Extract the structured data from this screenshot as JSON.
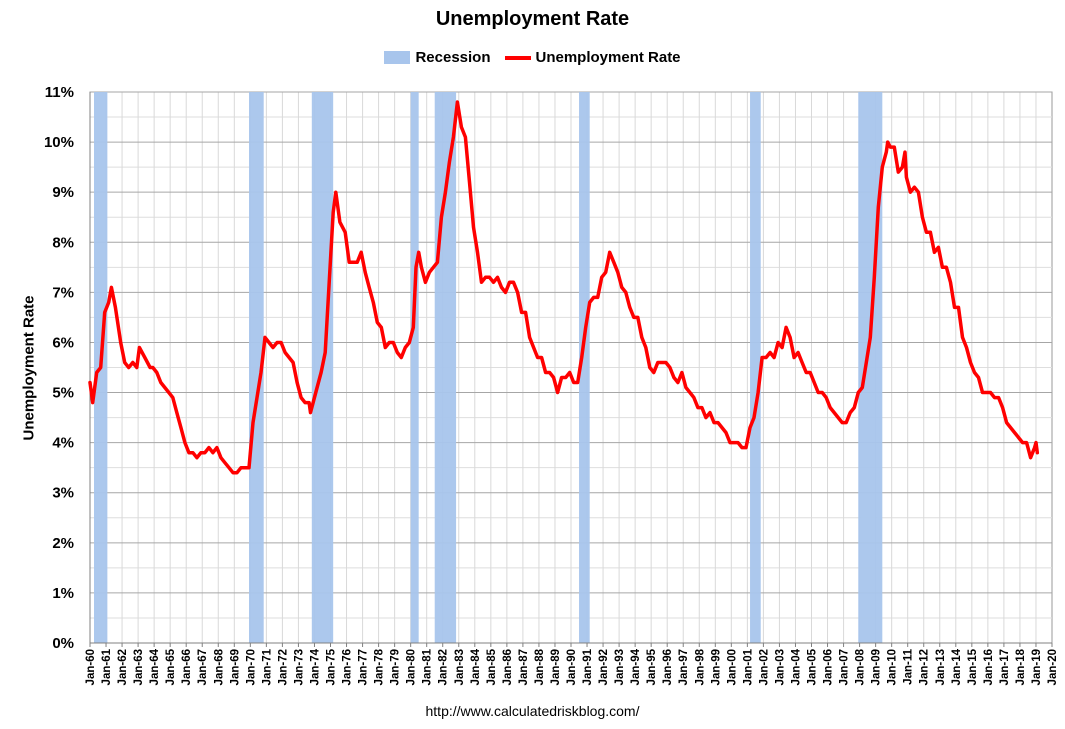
{
  "chart_data": {
    "type": "line",
    "title": "Unemployment Rate",
    "ylabel": "Unemployment Rate",
    "xlabel": "",
    "source": "http://www.calculatedriskblog.com/",
    "ylim": [
      0,
      11
    ],
    "y_ticks": [
      "0%",
      "1%",
      "2%",
      "3%",
      "4%",
      "5%",
      "6%",
      "7%",
      "8%",
      "9%",
      "10%",
      "11%"
    ],
    "x_range": [
      1960,
      2020
    ],
    "x_ticks": [
      "Jan-60",
      "Jan-61",
      "Jan-62",
      "Jan-63",
      "Jan-64",
      "Jan-65",
      "Jan-66",
      "Jan-67",
      "Jan-68",
      "Jan-69",
      "Jan-70",
      "Jan-71",
      "Jan-72",
      "Jan-73",
      "Jan-74",
      "Jan-75",
      "Jan-76",
      "Jan-77",
      "Jan-78",
      "Jan-79",
      "Jan-80",
      "Jan-81",
      "Jan-82",
      "Jan-83",
      "Jan-84",
      "Jan-85",
      "Jan-86",
      "Jan-87",
      "Jan-88",
      "Jan-89",
      "Jan-90",
      "Jan-91",
      "Jan-92",
      "Jan-93",
      "Jan-94",
      "Jan-95",
      "Jan-96",
      "Jan-97",
      "Jan-98",
      "Jan-99",
      "Jan-00",
      "Jan-01",
      "Jan-02",
      "Jan-03",
      "Jan-04",
      "Jan-05",
      "Jan-06",
      "Jan-07",
      "Jan-08",
      "Jan-09",
      "Jan-10",
      "Jan-11",
      "Jan-12",
      "Jan-13",
      "Jan-14",
      "Jan-15",
      "Jan-16",
      "Jan-17",
      "Jan-18",
      "Jan-19",
      "Jan-20"
    ],
    "grid": true,
    "legend_position": "top",
    "legend": [
      {
        "label": "Recession",
        "kind": "band",
        "color": "#a8c5ec"
      },
      {
        "label": "Unemployment Rate",
        "kind": "line",
        "color": "#ff0000"
      }
    ],
    "recessions": [
      [
        "1960-04",
        "1961-02"
      ],
      [
        "1969-12",
        "1970-11"
      ],
      [
        "1973-11",
        "1975-03"
      ],
      [
        "1980-01",
        "1980-07"
      ],
      [
        "1981-07",
        "1982-11"
      ],
      [
        "1990-07",
        "1991-03"
      ],
      [
        "2001-03",
        "2001-11"
      ],
      [
        "2007-12",
        "2009-06"
      ]
    ],
    "series": [
      {
        "name": "Unemployment Rate",
        "color": "#ff0000",
        "points": [
          [
            "1960-01",
            5.2
          ],
          [
            "1960-03",
            4.8
          ],
          [
            "1960-06",
            5.4
          ],
          [
            "1960-09",
            5.5
          ],
          [
            "1960-12",
            6.6
          ],
          [
            "1961-03",
            6.8
          ],
          [
            "1961-05",
            7.1
          ],
          [
            "1961-08",
            6.7
          ],
          [
            "1961-12",
            6.0
          ],
          [
            "1962-03",
            5.6
          ],
          [
            "1962-06",
            5.5
          ],
          [
            "1962-09",
            5.6
          ],
          [
            "1962-12",
            5.5
          ],
          [
            "1963-02",
            5.9
          ],
          [
            "1963-06",
            5.7
          ],
          [
            "1963-10",
            5.5
          ],
          [
            "1963-12",
            5.5
          ],
          [
            "1964-03",
            5.4
          ],
          [
            "1964-06",
            5.2
          ],
          [
            "1964-09",
            5.1
          ],
          [
            "1964-12",
            5.0
          ],
          [
            "1965-03",
            4.9
          ],
          [
            "1965-06",
            4.6
          ],
          [
            "1965-09",
            4.3
          ],
          [
            "1965-12",
            4.0
          ],
          [
            "1966-03",
            3.8
          ],
          [
            "1966-06",
            3.8
          ],
          [
            "1966-09",
            3.7
          ],
          [
            "1966-12",
            3.8
          ],
          [
            "1967-03",
            3.8
          ],
          [
            "1967-06",
            3.9
          ],
          [
            "1967-09",
            3.8
          ],
          [
            "1967-12",
            3.9
          ],
          [
            "1968-03",
            3.7
          ],
          [
            "1968-06",
            3.6
          ],
          [
            "1968-09",
            3.5
          ],
          [
            "1968-12",
            3.4
          ],
          [
            "1969-03",
            3.4
          ],
          [
            "1969-06",
            3.5
          ],
          [
            "1969-09",
            3.5
          ],
          [
            "1969-12",
            3.5
          ],
          [
            "1970-03",
            4.4
          ],
          [
            "1970-06",
            4.9
          ],
          [
            "1970-09",
            5.4
          ],
          [
            "1970-12",
            6.1
          ],
          [
            "1971-03",
            6.0
          ],
          [
            "1971-06",
            5.9
          ],
          [
            "1971-09",
            6.0
          ],
          [
            "1971-12",
            6.0
          ],
          [
            "1972-03",
            5.8
          ],
          [
            "1972-06",
            5.7
          ],
          [
            "1972-09",
            5.6
          ],
          [
            "1972-12",
            5.2
          ],
          [
            "1973-03",
            4.9
          ],
          [
            "1973-06",
            4.8
          ],
          [
            "1973-09",
            4.8
          ],
          [
            "1973-10",
            4.6
          ],
          [
            "1974-03",
            5.1
          ],
          [
            "1974-06",
            5.4
          ],
          [
            "1974-09",
            5.8
          ],
          [
            "1974-12",
            7.2
          ],
          [
            "1975-03",
            8.6
          ],
          [
            "1975-05",
            9.0
          ],
          [
            "1975-08",
            8.4
          ],
          [
            "1975-12",
            8.2
          ],
          [
            "1976-03",
            7.6
          ],
          [
            "1976-06",
            7.6
          ],
          [
            "1976-09",
            7.6
          ],
          [
            "1976-12",
            7.8
          ],
          [
            "1977-03",
            7.4
          ],
          [
            "1977-06",
            7.1
          ],
          [
            "1977-09",
            6.8
          ],
          [
            "1977-12",
            6.4
          ],
          [
            "1978-03",
            6.3
          ],
          [
            "1978-06",
            5.9
          ],
          [
            "1978-09",
            6.0
          ],
          [
            "1978-12",
            6.0
          ],
          [
            "1979-03",
            5.8
          ],
          [
            "1979-06",
            5.7
          ],
          [
            "1979-09",
            5.9
          ],
          [
            "1979-12",
            6.0
          ],
          [
            "1980-03",
            6.3
          ],
          [
            "1980-05",
            7.5
          ],
          [
            "1980-07",
            7.8
          ],
          [
            "1980-09",
            7.5
          ],
          [
            "1980-12",
            7.2
          ],
          [
            "1981-03",
            7.4
          ],
          [
            "1981-06",
            7.5
          ],
          [
            "1981-09",
            7.6
          ],
          [
            "1981-12",
            8.5
          ],
          [
            "1982-03",
            9.0
          ],
          [
            "1982-06",
            9.6
          ],
          [
            "1982-09",
            10.1
          ],
          [
            "1982-12",
            10.8
          ],
          [
            "1983-03",
            10.3
          ],
          [
            "1983-06",
            10.1
          ],
          [
            "1983-09",
            9.2
          ],
          [
            "1983-12",
            8.3
          ],
          [
            "1984-03",
            7.8
          ],
          [
            "1984-06",
            7.2
          ],
          [
            "1984-09",
            7.3
          ],
          [
            "1984-12",
            7.3
          ],
          [
            "1985-03",
            7.2
          ],
          [
            "1985-06",
            7.3
          ],
          [
            "1985-09",
            7.1
          ],
          [
            "1985-12",
            7.0
          ],
          [
            "1986-03",
            7.2
          ],
          [
            "1986-06",
            7.2
          ],
          [
            "1986-09",
            7.0
          ],
          [
            "1986-12",
            6.6
          ],
          [
            "1987-03",
            6.6
          ],
          [
            "1987-06",
            6.1
          ],
          [
            "1987-09",
            5.9
          ],
          [
            "1987-12",
            5.7
          ],
          [
            "1988-03",
            5.7
          ],
          [
            "1988-06",
            5.4
          ],
          [
            "1988-09",
            5.4
          ],
          [
            "1988-12",
            5.3
          ],
          [
            "1989-03",
            5.0
          ],
          [
            "1989-06",
            5.3
          ],
          [
            "1989-09",
            5.3
          ],
          [
            "1989-12",
            5.4
          ],
          [
            "1990-03",
            5.2
          ],
          [
            "1990-06",
            5.2
          ],
          [
            "1990-09",
            5.7
          ],
          [
            "1990-12",
            6.3
          ],
          [
            "1991-03",
            6.8
          ],
          [
            "1991-06",
            6.9
          ],
          [
            "1991-09",
            6.9
          ],
          [
            "1991-12",
            7.3
          ],
          [
            "1992-03",
            7.4
          ],
          [
            "1992-06",
            7.8
          ],
          [
            "1992-09",
            7.6
          ],
          [
            "1992-12",
            7.4
          ],
          [
            "1993-03",
            7.1
          ],
          [
            "1993-06",
            7.0
          ],
          [
            "1993-09",
            6.7
          ],
          [
            "1993-12",
            6.5
          ],
          [
            "1994-03",
            6.5
          ],
          [
            "1994-06",
            6.1
          ],
          [
            "1994-09",
            5.9
          ],
          [
            "1994-12",
            5.5
          ],
          [
            "1995-03",
            5.4
          ],
          [
            "1995-06",
            5.6
          ],
          [
            "1995-09",
            5.6
          ],
          [
            "1995-12",
            5.6
          ],
          [
            "1996-03",
            5.5
          ],
          [
            "1996-06",
            5.3
          ],
          [
            "1996-09",
            5.2
          ],
          [
            "1996-12",
            5.4
          ],
          [
            "1997-03",
            5.1
          ],
          [
            "1997-06",
            5.0
          ],
          [
            "1997-09",
            4.9
          ],
          [
            "1997-12",
            4.7
          ],
          [
            "1998-03",
            4.7
          ],
          [
            "1998-06",
            4.5
          ],
          [
            "1998-09",
            4.6
          ],
          [
            "1998-12",
            4.4
          ],
          [
            "1999-03",
            4.4
          ],
          [
            "1999-06",
            4.3
          ],
          [
            "1999-09",
            4.2
          ],
          [
            "1999-12",
            4.0
          ],
          [
            "2000-03",
            4.0
          ],
          [
            "2000-06",
            4.0
          ],
          [
            "2000-09",
            3.9
          ],
          [
            "2000-12",
            3.9
          ],
          [
            "2001-03",
            4.3
          ],
          [
            "2001-06",
            4.5
          ],
          [
            "2001-09",
            5.0
          ],
          [
            "2001-12",
            5.7
          ],
          [
            "2002-03",
            5.7
          ],
          [
            "2002-06",
            5.8
          ],
          [
            "2002-09",
            5.7
          ],
          [
            "2002-12",
            6.0
          ],
          [
            "2003-03",
            5.9
          ],
          [
            "2003-06",
            6.3
          ],
          [
            "2003-09",
            6.1
          ],
          [
            "2003-12",
            5.7
          ],
          [
            "2004-03",
            5.8
          ],
          [
            "2004-06",
            5.6
          ],
          [
            "2004-09",
            5.4
          ],
          [
            "2004-12",
            5.4
          ],
          [
            "2005-03",
            5.2
          ],
          [
            "2005-06",
            5.0
          ],
          [
            "2005-09",
            5.0
          ],
          [
            "2005-12",
            4.9
          ],
          [
            "2006-03",
            4.7
          ],
          [
            "2006-06",
            4.6
          ],
          [
            "2006-09",
            4.5
          ],
          [
            "2006-12",
            4.4
          ],
          [
            "2007-03",
            4.4
          ],
          [
            "2007-06",
            4.6
          ],
          [
            "2007-09",
            4.7
          ],
          [
            "2007-12",
            5.0
          ],
          [
            "2008-03",
            5.1
          ],
          [
            "2008-06",
            5.6
          ],
          [
            "2008-09",
            6.1
          ],
          [
            "2008-12",
            7.3
          ],
          [
            "2009-03",
            8.7
          ],
          [
            "2009-06",
            9.5
          ],
          [
            "2009-09",
            9.8
          ],
          [
            "2009-10",
            10.0
          ],
          [
            "2009-12",
            9.9
          ],
          [
            "2010-03",
            9.9
          ],
          [
            "2010-06",
            9.4
          ],
          [
            "2010-09",
            9.5
          ],
          [
            "2010-11",
            9.8
          ],
          [
            "2010-12",
            9.3
          ],
          [
            "2011-03",
            9.0
          ],
          [
            "2011-06",
            9.1
          ],
          [
            "2011-09",
            9.0
          ],
          [
            "2011-12",
            8.5
          ],
          [
            "2012-03",
            8.2
          ],
          [
            "2012-06",
            8.2
          ],
          [
            "2012-09",
            7.8
          ],
          [
            "2012-12",
            7.9
          ],
          [
            "2013-03",
            7.5
          ],
          [
            "2013-06",
            7.5
          ],
          [
            "2013-09",
            7.2
          ],
          [
            "2013-12",
            6.7
          ],
          [
            "2014-03",
            6.7
          ],
          [
            "2014-06",
            6.1
          ],
          [
            "2014-09",
            5.9
          ],
          [
            "2014-12",
            5.6
          ],
          [
            "2015-03",
            5.4
          ],
          [
            "2015-06",
            5.3
          ],
          [
            "2015-09",
            5.0
          ],
          [
            "2015-12",
            5.0
          ],
          [
            "2016-03",
            5.0
          ],
          [
            "2016-06",
            4.9
          ],
          [
            "2016-09",
            4.9
          ],
          [
            "2016-12",
            4.7
          ],
          [
            "2017-03",
            4.4
          ],
          [
            "2017-06",
            4.3
          ],
          [
            "2017-09",
            4.2
          ],
          [
            "2017-12",
            4.1
          ],
          [
            "2018-03",
            4.0
          ],
          [
            "2018-06",
            4.0
          ],
          [
            "2018-09",
            3.7
          ],
          [
            "2018-12",
            3.9
          ],
          [
            "2019-01",
            4.0
          ],
          [
            "2019-02",
            3.8
          ]
        ]
      }
    ]
  }
}
